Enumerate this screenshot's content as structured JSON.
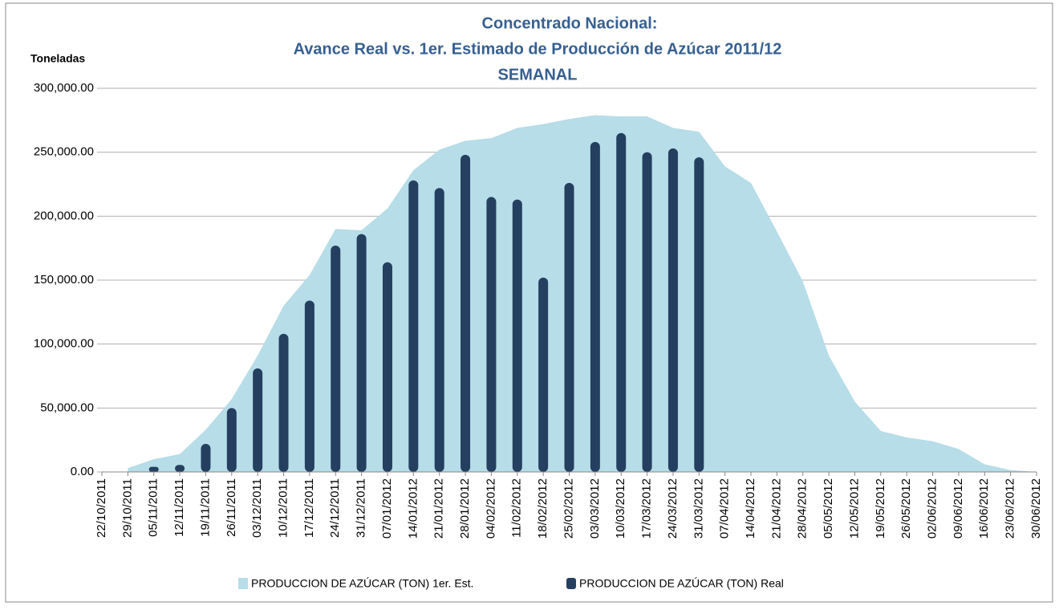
{
  "chart_data": {
    "type": "combo",
    "title": [
      "Concentrado Nacional:",
      "Avance Real vs. 1er. Estimado de Producción de Azúcar 2011/12",
      "SEMANAL"
    ],
    "y_label": "Toneladas",
    "categories": [
      "22/10/2011",
      "29/10/2011",
      "05/11/2011",
      "12/11/2011",
      "19/11/2011",
      "26/11/2011",
      "03/12/2011",
      "10/12/2011",
      "17/12/2011",
      "24/12/2011",
      "31/12/2011",
      "07/01/2012",
      "14/01/2012",
      "21/01/2012",
      "28/01/2012",
      "04/02/2012",
      "11/02/2012",
      "18/02/2012",
      "25/02/2012",
      "03/03/2012",
      "10/03/2012",
      "17/03/2012",
      "24/03/2012",
      "31/03/2012",
      "07/04/2012",
      "14/04/2012",
      "21/04/2012",
      "28/04/2012",
      "05/05/2012",
      "12/05/2012",
      "19/05/2012",
      "26/05/2012",
      "02/06/2012",
      "09/06/2012",
      "16/06/2012",
      "23/06/2012",
      "30/06/2012"
    ],
    "series": [
      {
        "name": "PRODUCCION DE AZÚCAR (TON) 1er. Est.",
        "type": "area",
        "color": "#b6dde8",
        "values": [
          null,
          3000,
          10000,
          14000,
          33000,
          57000,
          91000,
          130000,
          154000,
          190000,
          189000,
          206000,
          236000,
          252000,
          259000,
          261000,
          269000,
          272000,
          276000,
          279000,
          278000,
          278000,
          269000,
          266000,
          239000,
          226000,
          188000,
          149000,
          91000,
          55000,
          32000,
          27000,
          24000,
          18000,
          6000,
          1500,
          0
        ]
      },
      {
        "name": "PRODUCCION DE AZÚCAR (TON) Real",
        "type": "bar",
        "color": "#243f60",
        "values": [
          null,
          null,
          4000,
          5500,
          22000,
          50000,
          81000,
          108000,
          134000,
          177000,
          186000,
          164000,
          228000,
          222000,
          248000,
          215000,
          213000,
          152000,
          226000,
          258000,
          265000,
          250000,
          253000,
          246000,
          null,
          null,
          null,
          null,
          null,
          null,
          null,
          null,
          null,
          null,
          null,
          null,
          null
        ]
      }
    ],
    "ylim": [
      0,
      300000
    ],
    "yticks": [
      {
        "value": 0,
        "label": "0.00"
      },
      {
        "value": 50000,
        "label": "50,000.00"
      },
      {
        "value": 100000,
        "label": "100,000.00"
      },
      {
        "value": 150000,
        "label": "150,000.00"
      },
      {
        "value": 200000,
        "label": "200,000.00"
      },
      {
        "value": 250000,
        "label": "250,000.00"
      },
      {
        "value": 300000,
        "label": "300,000.00"
      }
    ],
    "grid": true,
    "legend": "bottom"
  }
}
